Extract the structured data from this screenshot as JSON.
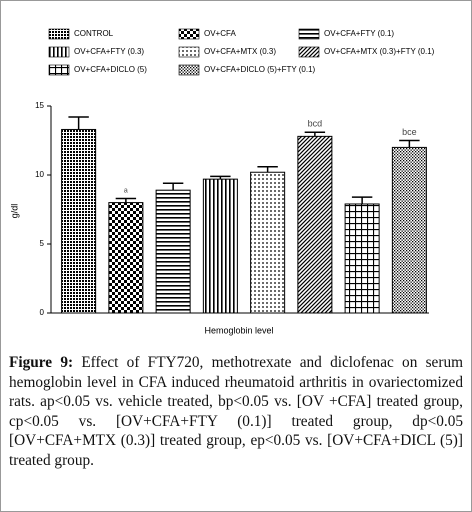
{
  "chart_data": {
    "type": "bar",
    "categories": [
      "CONTROL",
      "OV+CFA",
      "OV+CFA+FTY (0.1)",
      "OV+CFA+FTY (0.3)",
      "OV+CFA+MTX (0.3)",
      "OV+CFA+MTX (0.3)+FTY (0.1)",
      "OV+CFA+DICLO (5)",
      "OV+CFA+DICLO (5)+FTY (0.1)"
    ],
    "values": [
      13.3,
      8.0,
      8.9,
      9.7,
      10.2,
      12.8,
      7.9,
      12.0
    ],
    "errors": [
      0.9,
      0.3,
      0.5,
      0.2,
      0.4,
      0.3,
      0.5,
      0.5
    ],
    "annotations": [
      null,
      "a",
      null,
      null,
      null,
      "bcd",
      null,
      "bce"
    ],
    "color": "#000000",
    "ylim": [
      0,
      15
    ],
    "yticks": [
      0,
      5,
      10,
      15
    ],
    "y_label": "g/dl",
    "x_label": "Hemoglobin level"
  },
  "caption": {
    "label": "Figure 9:",
    "text": "Effect of FTY720, methotrexate and diclofenac on serum hemoglobin level in CFA induced rheumatoid arthritis in ovariectomized rats. ap<0.05 vs. vehicle treated, bp<0.05 vs. [OV +CFA] treated group, cp<0.05 vs. [OV+CFA+FTY (0.1)] treated group, dp<0.05 [OV+CFA+MTX (0.3)] treated group, ep<0.05 vs. [OV+CFA+DICL (5)] treated group."
  }
}
